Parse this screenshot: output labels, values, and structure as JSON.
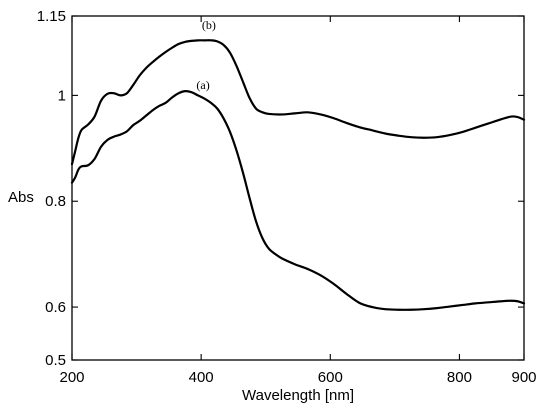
{
  "chart_data": {
    "type": "line",
    "title": "",
    "xlabel": "Wavelength [nm]",
    "ylabel": "Abs",
    "xlim": [
      200,
      900
    ],
    "ylim": [
      0.5,
      1.15
    ],
    "x_ticks": [
      200,
      400,
      600,
      800,
      900
    ],
    "y_ticks": [
      0.5,
      0.6,
      0.8,
      1,
      1.15
    ],
    "grid": false,
    "legend": "none",
    "annotations": [
      {
        "text": "(b)",
        "series": 1,
        "x": 412,
        "y": 1.125
      },
      {
        "text": "(a)",
        "series": 0,
        "x": 403,
        "y": 1.012
      }
    ],
    "series": [
      {
        "points": [
          [
            200,
            0.835
          ],
          [
            205,
            0.845
          ],
          [
            210,
            0.86
          ],
          [
            215,
            0.866
          ],
          [
            225,
            0.868
          ],
          [
            235,
            0.88
          ],
          [
            245,
            0.903
          ],
          [
            255,
            0.916
          ],
          [
            265,
            0.922
          ],
          [
            275,
            0.926
          ],
          [
            285,
            0.932
          ],
          [
            295,
            0.944
          ],
          [
            305,
            0.952
          ],
          [
            315,
            0.962
          ],
          [
            325,
            0.972
          ],
          [
            335,
            0.98
          ],
          [
            345,
            0.986
          ],
          [
            355,
            0.996
          ],
          [
            365,
            1.004
          ],
          [
            375,
            1.008
          ],
          [
            385,
            1.006
          ],
          [
            395,
            1.0
          ],
          [
            405,
            0.994
          ],
          [
            415,
            0.986
          ],
          [
            425,
            0.975
          ],
          [
            435,
            0.956
          ],
          [
            445,
            0.93
          ],
          [
            455,
            0.895
          ],
          [
            465,
            0.853
          ],
          [
            475,
            0.806
          ],
          [
            485,
            0.762
          ],
          [
            495,
            0.73
          ],
          [
            505,
            0.71
          ],
          [
            515,
            0.7
          ],
          [
            525,
            0.692
          ],
          [
            545,
            0.681
          ],
          [
            565,
            0.672
          ],
          [
            585,
            0.66
          ],
          [
            605,
            0.644
          ],
          [
            625,
            0.625
          ],
          [
            645,
            0.608
          ],
          [
            665,
            0.6
          ],
          [
            685,
            0.596
          ],
          [
            705,
            0.595
          ],
          [
            725,
            0.595
          ],
          [
            745,
            0.596
          ],
          [
            765,
            0.598
          ],
          [
            785,
            0.601
          ],
          [
            805,
            0.604
          ],
          [
            825,
            0.607
          ],
          [
            845,
            0.609
          ],
          [
            865,
            0.611
          ],
          [
            880,
            0.612
          ],
          [
            890,
            0.611
          ],
          [
            900,
            0.607
          ]
        ]
      },
      {
        "points": [
          [
            200,
            0.87
          ],
          [
            205,
            0.895
          ],
          [
            210,
            0.92
          ],
          [
            215,
            0.935
          ],
          [
            225,
            0.945
          ],
          [
            235,
            0.96
          ],
          [
            245,
            0.99
          ],
          [
            255,
            1.003
          ],
          [
            265,
            1.004
          ],
          [
            275,
            1.0
          ],
          [
            285,
            1.004
          ],
          [
            295,
            1.02
          ],
          [
            305,
            1.038
          ],
          [
            315,
            1.052
          ],
          [
            325,
            1.063
          ],
          [
            335,
            1.073
          ],
          [
            345,
            1.082
          ],
          [
            355,
            1.09
          ],
          [
            365,
            1.097
          ],
          [
            375,
            1.101
          ],
          [
            385,
            1.103
          ],
          [
            395,
            1.104
          ],
          [
            405,
            1.104
          ],
          [
            415,
            1.104
          ],
          [
            425,
            1.102
          ],
          [
            435,
            1.095
          ],
          [
            445,
            1.08
          ],
          [
            455,
            1.055
          ],
          [
            465,
            1.025
          ],
          [
            475,
            0.995
          ],
          [
            485,
            0.975
          ],
          [
            495,
            0.968
          ],
          [
            505,
            0.965
          ],
          [
            525,
            0.964
          ],
          [
            545,
            0.966
          ],
          [
            565,
            0.968
          ],
          [
            585,
            0.964
          ],
          [
            605,
            0.957
          ],
          [
            625,
            0.948
          ],
          [
            645,
            0.94
          ],
          [
            665,
            0.934
          ],
          [
            685,
            0.928
          ],
          [
            705,
            0.924
          ],
          [
            725,
            0.921
          ],
          [
            745,
            0.92
          ],
          [
            765,
            0.921
          ],
          [
            785,
            0.925
          ],
          [
            805,
            0.931
          ],
          [
            825,
            0.939
          ],
          [
            845,
            0.947
          ],
          [
            865,
            0.955
          ],
          [
            880,
            0.96
          ],
          [
            890,
            0.959
          ],
          [
            900,
            0.954
          ]
        ]
      }
    ]
  }
}
